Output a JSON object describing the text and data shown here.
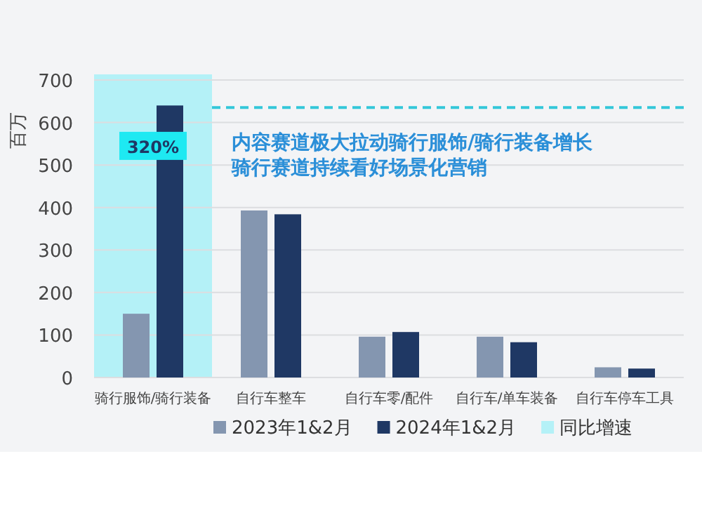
{
  "chart_data": {
    "type": "bar",
    "title": "内容赛道极大拉动骑行服饰/骑行装备增长",
    "subtitle": "骑行赛道持续看好场景化营销",
    "ylabel": "百万",
    "categories": [
      "骑行服饰/骑行装备",
      "自行车整车",
      "自行车零/配件",
      "自行车/单车装备",
      "自行车停车工具"
    ],
    "series": [
      {
        "name": "2023年1&2月",
        "color": "#8496b0",
        "values": [
          150,
          393,
          96,
          96,
          24
        ]
      },
      {
        "name": "2024年1&2月",
        "color": "#1f3864",
        "values": [
          640,
          384,
          107,
          83,
          21
        ]
      }
    ],
    "bands": [
      {
        "axis": "x",
        "from": "骑行服饰/骑行装备",
        "to": "骑行服饰/骑行装备",
        "label": "同比增速",
        "color": "#b4f1f7"
      }
    ],
    "ref_lines": [
      {
        "axis": "y",
        "value": 635,
        "color": "#33c7d9",
        "line_style": "dashed"
      }
    ],
    "annotations": [
      {
        "text": "320%",
        "x": "骑行服饰/骑行装备",
        "y": 545
      }
    ],
    "ylim": [
      0,
      700
    ],
    "yticks": [
      0,
      100,
      200,
      300,
      400,
      500,
      600,
      700
    ],
    "grid": "y",
    "legend": "bottom"
  }
}
